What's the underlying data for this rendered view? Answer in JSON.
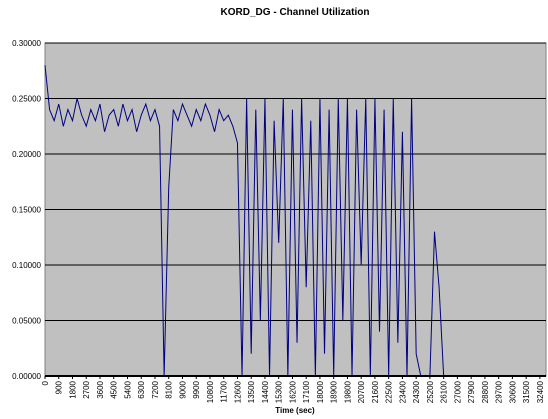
{
  "chart_data": {
    "type": "line",
    "title": "KORD_DG - Channel Utilization",
    "x_label": "Time (sec)",
    "x": [
      0,
      300,
      600,
      900,
      1200,
      1500,
      1800,
      2100,
      2400,
      2700,
      3000,
      3300,
      3600,
      3900,
      4200,
      4500,
      4800,
      5100,
      5400,
      5700,
      6000,
      6300,
      6600,
      6900,
      7200,
      7500,
      7800,
      8100,
      8400,
      8700,
      9000,
      9300,
      9600,
      9900,
      10200,
      10500,
      10800,
      11100,
      11400,
      11700,
      12000,
      12300,
      12600,
      12900,
      13200,
      13500,
      13800,
      14100,
      14400,
      14700,
      15000,
      15300,
      15600,
      15900,
      16200,
      16500,
      16800,
      17100,
      17400,
      17700,
      18000,
      18300,
      18600,
      18900,
      19200,
      19500,
      19800,
      20100,
      20400,
      20700,
      21000,
      21300,
      21600,
      21900,
      22200,
      22500,
      22800,
      23100,
      23400,
      23700,
      24000,
      24300,
      24600,
      24900,
      25200,
      25500,
      25800,
      26100,
      26400,
      26700,
      27000,
      27300,
      27600,
      27900,
      28200,
      28500,
      28800,
      29100,
      29400,
      29700,
      30000,
      30300,
      30600,
      30900,
      31200,
      31500,
      31800,
      32100,
      32400,
      32700
    ],
    "values": [
      0.28,
      0.24,
      0.23,
      0.245,
      0.225,
      0.24,
      0.23,
      0.25,
      0.235,
      0.225,
      0.24,
      0.23,
      0.245,
      0.22,
      0.235,
      0.24,
      0.225,
      0.245,
      0.23,
      0.24,
      0.22,
      0.235,
      0.245,
      0.23,
      0.24,
      0.225,
      0,
      0.17,
      0.24,
      0.23,
      0.245,
      0.235,
      0.225,
      0.24,
      0.23,
      0.245,
      0.235,
      0.22,
      0.24,
      0.23,
      0.235,
      0.225,
      0.21,
      0,
      0.25,
      0.02,
      0.24,
      0.05,
      0.25,
      0,
      0.23,
      0.12,
      0.25,
      0,
      0.24,
      0.03,
      0.25,
      0.08,
      0.23,
      0,
      0.25,
      0.02,
      0.24,
      0,
      0.25,
      0.05,
      0.25,
      0,
      0.24,
      0.1,
      0.25,
      0,
      0.25,
      0.04,
      0.24,
      0,
      0.25,
      0.03,
      0.22,
      0,
      0.25,
      0.02,
      0,
      0,
      0,
      0.13,
      0.08,
      0,
      0,
      0,
      0,
      0,
      0,
      0,
      0,
      0,
      0,
      0,
      0,
      0,
      0,
      0,
      0,
      0,
      0,
      0,
      0,
      0,
      0,
      0
    ],
    "color": "#000080",
    "xlim": [
      0,
      32800
    ],
    "xticks": [
      0,
      900,
      1800,
      2700,
      3600,
      4500,
      5400,
      6300,
      7200,
      8100,
      9000,
      9900,
      10800,
      11700,
      12600,
      13500,
      14400,
      15300,
      16200,
      17100,
      18000,
      18900,
      19800,
      20700,
      21600,
      22500,
      23400,
      24300,
      25200,
      26100,
      27000,
      27900,
      28800,
      29700,
      30600,
      31500,
      32400
    ],
    "ylim": [
      0,
      0.3
    ],
    "yticks": [
      {
        "value": 0,
        "label": "0.00000"
      },
      {
        "value": 0.05,
        "label": "0.05000"
      },
      {
        "value": 0.1,
        "label": "0.10000"
      },
      {
        "value": 0.15,
        "label": "0.15000"
      },
      {
        "value": 0.2,
        "label": "0.20000"
      },
      {
        "value": 0.25,
        "label": "0.25000"
      },
      {
        "value": 0.3,
        "label": "0.30000"
      }
    ],
    "grid": true
  }
}
